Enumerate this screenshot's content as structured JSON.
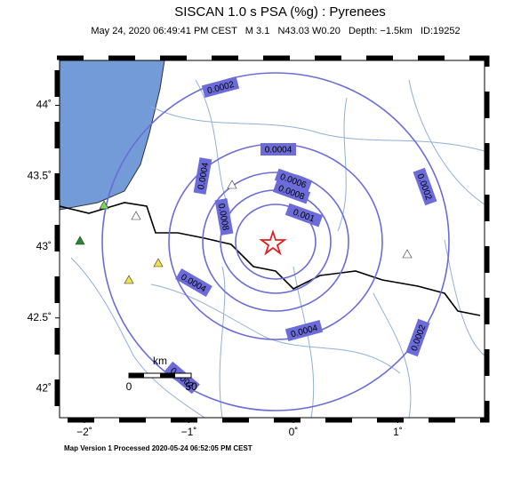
{
  "header": {
    "title": "SISCAN 1.0 s PSA (%g) : Pyrenees",
    "subtitle": "May 24, 2020 06:49:41 PM CEST   M 3.1   N43.03 W0.20   Depth: −1.5km   ID:19252"
  },
  "map": {
    "lat_ticks": [
      {
        "value": 44,
        "label": "44˚"
      },
      {
        "value": 43.5,
        "label": "43.5˚"
      },
      {
        "value": 43,
        "label": "43˚"
      },
      {
        "value": 42.5,
        "label": "42.5˚"
      },
      {
        "value": 42,
        "label": "42˚"
      }
    ],
    "lon_ticks": [
      {
        "value": -2,
        "label": "−2˚"
      },
      {
        "value": -1,
        "label": "−1˚"
      },
      {
        "value": 0,
        "label": "0˚"
      },
      {
        "value": 1,
        "label": "1˚"
      }
    ],
    "contours": [
      0.0002,
      0.0004,
      0.0006,
      0.0008,
      0.001
    ],
    "scale": {
      "unit": "km",
      "labels": [
        "0",
        "50"
      ]
    }
  },
  "footer": "Map Version 1 Processed 2020-05-24 06:52:05 PM CEST"
}
